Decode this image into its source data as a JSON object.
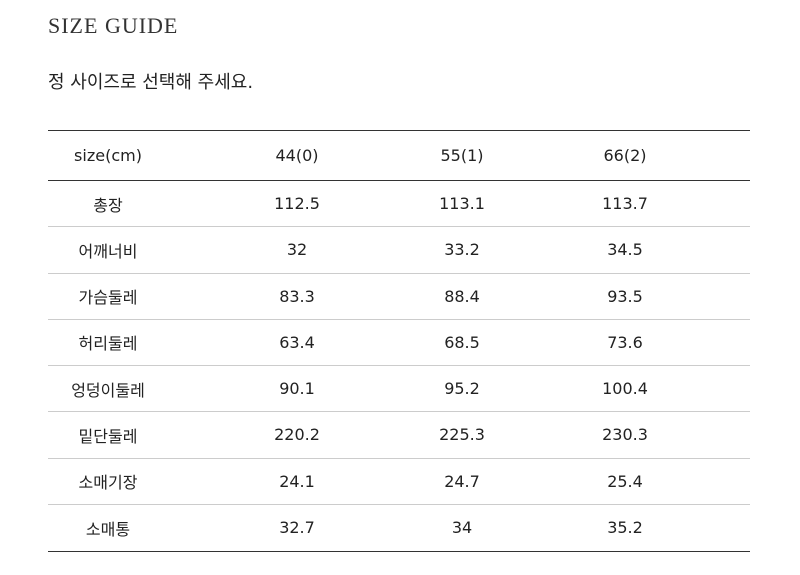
{
  "header": {
    "title": "SIZE GUIDE",
    "subtitle": "정 사이즈로 선택해 주세요."
  },
  "table": {
    "columns": [
      "size(cm)",
      "44(0)",
      "55(1)",
      "66(2)"
    ],
    "rows": [
      [
        "총장",
        "112.5",
        "113.1",
        "113.7"
      ],
      [
        "어깨너비",
        "32",
        "33.2",
        "34.5"
      ],
      [
        "가슴둘레",
        "83.3",
        "88.4",
        "93.5"
      ],
      [
        "허리둘레",
        "63.4",
        "68.5",
        "73.6"
      ],
      [
        "엉덩이둘레",
        "90.1",
        "95.2",
        "100.4"
      ],
      [
        "밑단둘레",
        "220.2",
        "225.3",
        "230.3"
      ],
      [
        "소매기장",
        "24.1",
        "24.7",
        "25.4"
      ],
      [
        "소매통",
        "32.7",
        "34",
        "35.2"
      ]
    ]
  }
}
